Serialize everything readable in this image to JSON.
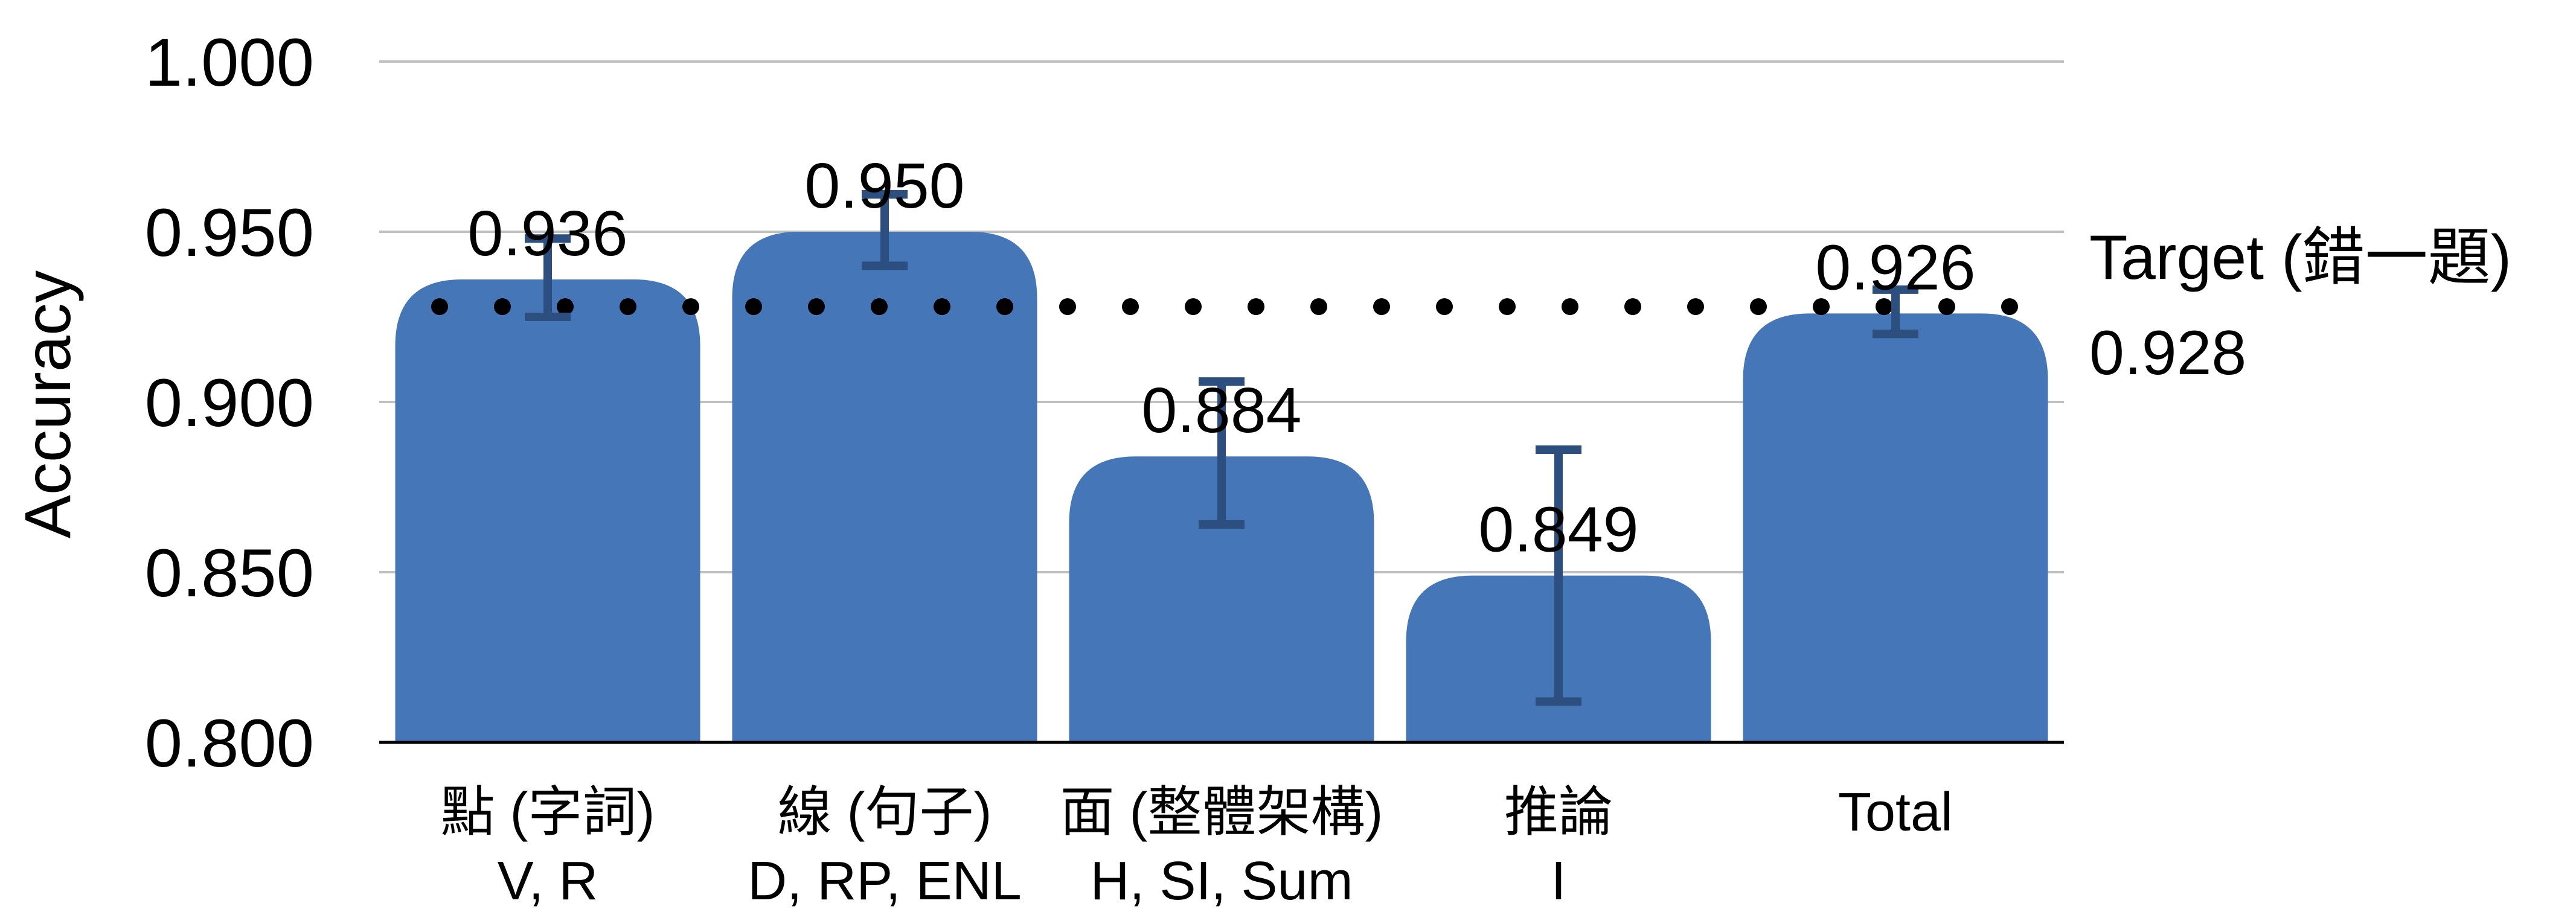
{
  "chart_data": {
    "type": "bar",
    "title": "",
    "xlabel": "",
    "ylabel": "Accuracy",
    "ylim": [
      0.8,
      1.0
    ],
    "yticks": [
      "0.800",
      "0.850",
      "0.900",
      "0.950",
      "1.000"
    ],
    "grid": true,
    "categories": [
      {
        "line1": "點 (字詞)",
        "line2": "V, R"
      },
      {
        "line1": "線 (句子)",
        "line2": "D, RP, ENL"
      },
      {
        "line1": "面 (整體架構)",
        "line2": "H, SI, Sum"
      },
      {
        "line1": "推論",
        "line2": "I"
      },
      {
        "line1": "Total",
        "line2": ""
      }
    ],
    "values": [
      0.936,
      0.95,
      0.884,
      0.849,
      0.926
    ],
    "value_labels": [
      "0.936",
      "0.950",
      "0.884",
      "0.849",
      "0.926"
    ],
    "error_low": [
      0.925,
      0.94,
      0.864,
      0.812,
      0.92
    ],
    "error_high": [
      0.948,
      0.961,
      0.906,
      0.886,
      0.933
    ],
    "target": {
      "value": 0.928,
      "label": "Target (錯一題)",
      "value_label": "0.928"
    },
    "colors": {
      "bar": "#4576b8",
      "error_bar": "#2c4f7f",
      "grid": "#c0c0c0",
      "axis": "#000000",
      "target_dots": "#000000"
    }
  }
}
